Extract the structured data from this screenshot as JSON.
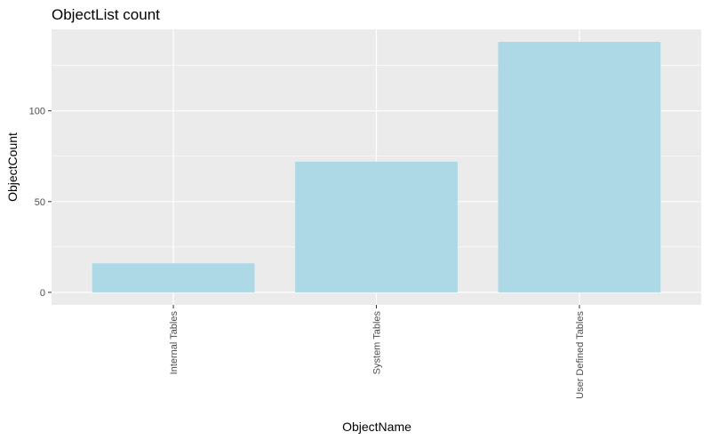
{
  "chart_data": {
    "type": "bar",
    "title": "ObjectList count",
    "xlabel": "ObjectName",
    "ylabel": "ObjectCount",
    "categories": [
      "Internal Tables",
      "System Tables",
      "User Defined Tables"
    ],
    "values": [
      16,
      72,
      138
    ],
    "ylim": [
      -6.9,
      144.9
    ],
    "yticks": [
      0,
      50,
      100
    ],
    "ytick_labels": [
      "0",
      "50",
      "100"
    ],
    "grid": true,
    "legend": "none",
    "colors": {
      "bar": "#add8e6",
      "panel": "#ebebeb",
      "grid_major": "#ffffff",
      "tick_text": "#4d4d4d"
    }
  }
}
